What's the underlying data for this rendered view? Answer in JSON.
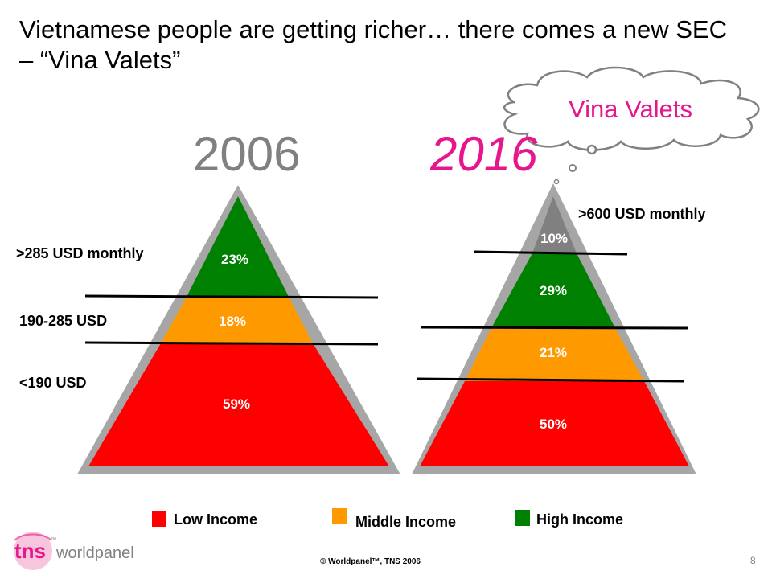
{
  "title": "Vietnamese people are getting richer… there comes a new SEC – “Vina Valets”",
  "cloud_text": "Vina Valets",
  "year_left": "2006",
  "year_right": "2016",
  "left_pyramid": {
    "labels": [
      ">285 USD monthly",
      "190-285 USD",
      "<190 USD"
    ],
    "segments": [
      {
        "value": "23%",
        "color": "#008000"
      },
      {
        "value": "18%",
        "color": "#ff9900"
      },
      {
        "value": "59%",
        "color": "#ff0000"
      }
    ]
  },
  "right_pyramid": {
    "labels": [
      ">600 USD monthly"
    ],
    "segments": [
      {
        "value": "10%",
        "color": "#808080"
      },
      {
        "value": "29%",
        "color": "#008000"
      },
      {
        "value": "21%",
        "color": "#ff9900"
      },
      {
        "value": "50%",
        "color": "#ff0000"
      }
    ]
  },
  "legend": [
    {
      "label": "Low Income",
      "color": "#ff0000"
    },
    {
      "label": "Middle Income",
      "color": "#ff9900"
    },
    {
      "label": "High Income",
      "color": "#008000"
    }
  ],
  "footer": "© Worldpanel™, TNS 2006",
  "page_number": "8",
  "logo": {
    "main": "tns",
    "sub": "worldpanel",
    "tm": "™",
    "color": "#e6168c"
  }
}
